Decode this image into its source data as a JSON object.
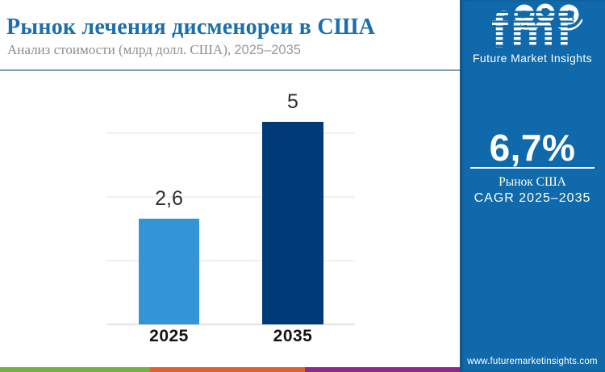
{
  "header": {
    "title": "Рынок лечения дисменореи в США",
    "subtitle_main": "Анализ стоимости (млрд долл. США), ",
    "subtitle_years": "2025–2035"
  },
  "chart_data": {
    "type": "bar",
    "title": "Рынок лечения дисменореи в США",
    "subtitle": "Анализ стоимости (млрд долл. США), 2025–2035",
    "unit": "млрд долл. США",
    "categories": [
      "2025",
      "2035"
    ],
    "values": [
      2.6,
      5
    ],
    "value_labels": [
      "2,6",
      "5"
    ],
    "bar_colors": [
      "#3495d6",
      "#003a78"
    ],
    "ylim": [
      0,
      5.6
    ],
    "grid": true,
    "legend": false
  },
  "sidebar": {
    "logo_text": "fmi",
    "logo_caption": "Future Market Insights",
    "logo_icons": [
      "us-map-icon",
      "europe-map-icon",
      "asia-globe-icon"
    ],
    "kpi_value": "6,7%",
    "kpi_label1": "Рынок США",
    "kpi_label2": "CAGR 2025–2035",
    "website": "www.futuremarketinsights.com"
  },
  "colors": {
    "panel_blue": "#0f69aa",
    "title_blue": "#1c6fad",
    "bar_light_blue": "#3495d6",
    "bar_dark_navy": "#003a78",
    "strip_green": "#76b043",
    "strip_orange": "#e2622b",
    "strip_purple": "#8e2a8b"
  }
}
